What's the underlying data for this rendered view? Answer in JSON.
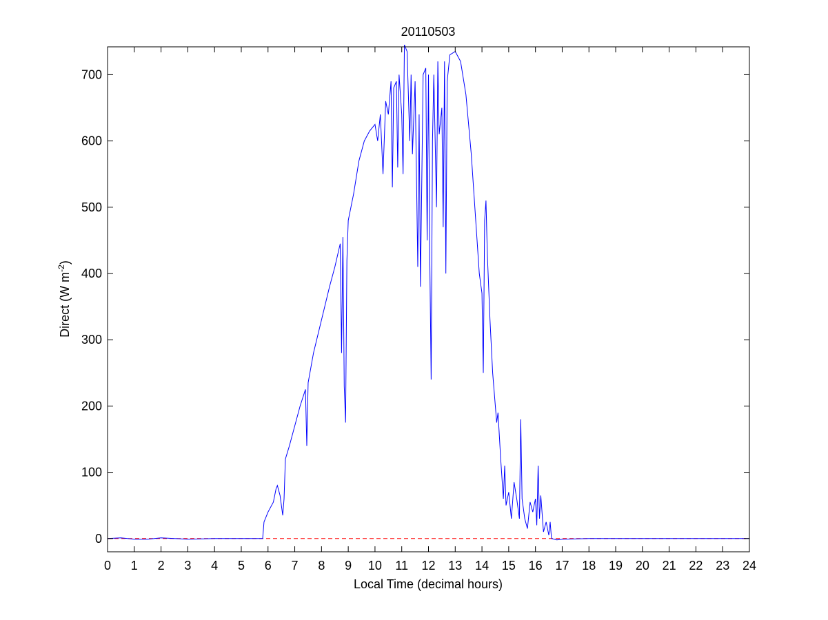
{
  "chart_data": {
    "type": "line",
    "title": "20110503",
    "xlabel": "Local Time (decimal hours)",
    "ylabel_parts": [
      "Direct (W m",
      "-2",
      ")"
    ],
    "xlim": [
      0,
      24
    ],
    "ylim": [
      -20,
      742
    ],
    "xticks": [
      0,
      1,
      2,
      3,
      4,
      5,
      6,
      7,
      8,
      9,
      10,
      11,
      12,
      13,
      14,
      15,
      16,
      17,
      18,
      19,
      20,
      21,
      22,
      23,
      24
    ],
    "yticks": [
      0,
      100,
      200,
      300,
      400,
      500,
      600,
      700
    ],
    "reference_line": {
      "y": 0,
      "color": "#ff0000"
    },
    "series": [
      {
        "color": "#0000ff",
        "x": [
          0,
          0.5,
          1,
          1.5,
          2,
          2.5,
          3,
          4,
          5,
          5.8,
          5.85,
          6.0,
          6.2,
          6.3,
          6.35,
          6.45,
          6.55,
          6.6,
          6.65,
          6.8,
          7,
          7.2,
          7.4,
          7.45,
          7.5,
          7.7,
          8,
          8.3,
          8.5,
          8.7,
          8.75,
          8.8,
          8.85,
          8.9,
          8.95,
          9.0,
          9.1,
          9.2,
          9.4,
          9.6,
          9.8,
          10,
          10.1,
          10.2,
          10.3,
          10.4,
          10.5,
          10.6,
          10.65,
          10.7,
          10.8,
          10.85,
          10.9,
          11.0,
          11.05,
          11.1,
          11.2,
          11.3,
          11.35,
          11.4,
          11.5,
          11.6,
          11.65,
          11.7,
          11.8,
          11.9,
          11.95,
          12.0,
          12.05,
          12.1,
          12.15,
          12.2,
          12.3,
          12.35,
          12.4,
          12.5,
          12.55,
          12.6,
          12.65,
          12.7,
          12.8,
          13,
          13.2,
          13.4,
          13.6,
          13.8,
          13.9,
          14.0,
          14.05,
          14.1,
          14.15,
          14.2,
          14.3,
          14.4,
          14.5,
          14.55,
          14.6,
          14.7,
          14.8,
          14.85,
          14.9,
          15.0,
          15.1,
          15.2,
          15.3,
          15.4,
          15.45,
          15.5,
          15.6,
          15.7,
          15.8,
          15.9,
          16.0,
          16.05,
          16.1,
          16.15,
          16.2,
          16.3,
          16.4,
          16.5,
          16.55,
          16.6,
          16.8,
          17,
          18,
          20,
          24
        ],
        "values": [
          0,
          1,
          -1,
          -1,
          1,
          0,
          -1,
          0,
          0,
          0,
          25,
          40,
          55,
          75,
          80,
          65,
          35,
          60,
          120,
          140,
          170,
          200,
          225,
          140,
          235,
          280,
          330,
          380,
          410,
          445,
          280,
          455,
          230,
          175,
          420,
          480,
          500,
          520,
          570,
          600,
          615,
          625,
          600,
          640,
          550,
          660,
          640,
          690,
          530,
          680,
          690,
          560,
          700,
          640,
          550,
          745,
          735,
          600,
          700,
          580,
          690,
          410,
          640,
          380,
          700,
          710,
          450,
          700,
          420,
          240,
          600,
          700,
          500,
          720,
          610,
          650,
          470,
          720,
          400,
          690,
          730,
          735,
          720,
          670,
          580,
          460,
          400,
          370,
          250,
          480,
          510,
          430,
          330,
          250,
          200,
          175,
          190,
          120,
          60,
          110,
          50,
          70,
          30,
          85,
          60,
          30,
          180,
          60,
          30,
          15,
          55,
          40,
          60,
          20,
          110,
          30,
          65,
          10,
          25,
          5,
          25,
          0,
          -2,
          -1,
          0,
          0,
          0
        ]
      }
    ]
  }
}
